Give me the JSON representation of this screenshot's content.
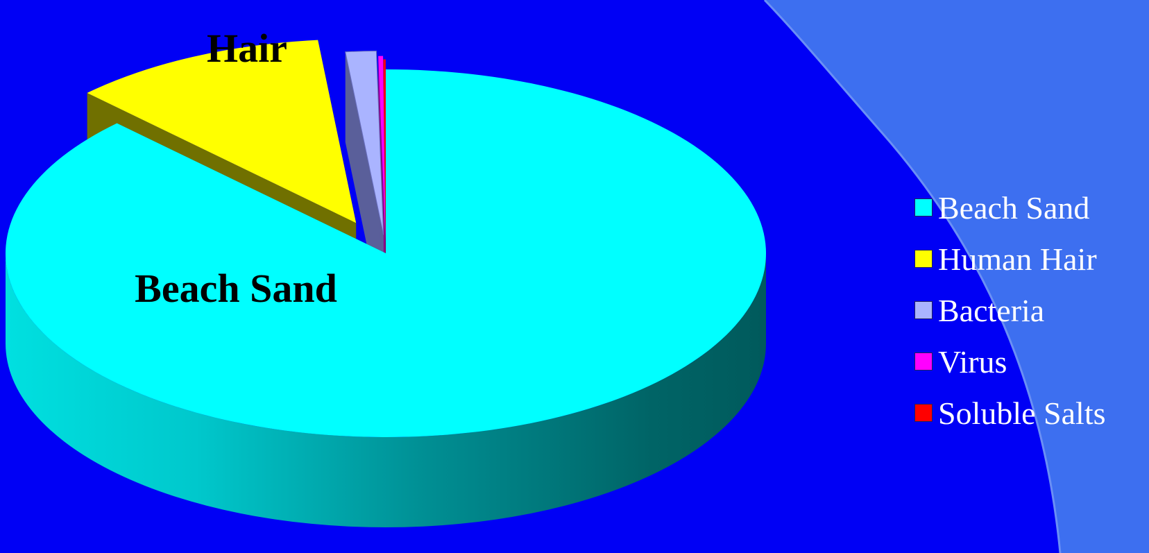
{
  "colors": {
    "background": "#0000f5",
    "ribbon": "#3d6ff0",
    "label_text": "#000000",
    "legend_text": "#ffffff"
  },
  "chart_data": {
    "type": "pie",
    "style": "3d-exploded",
    "legend_position": "right",
    "categories": [
      "Beach Sand",
      "Human Hair",
      "Bacteria",
      "Virus",
      "Soluble Salts"
    ],
    "values": [
      87.5,
      10.9,
      1.3,
      0.2,
      0.1
    ],
    "unit": "percent (estimated)",
    "series": [
      {
        "values": [
          87.5,
          10.9,
          1.3,
          0.2,
          0.1
        ],
        "colors": [
          "#00ffff",
          "#ffff00",
          "#aab4ff",
          "#ff00ff",
          "#ff0000"
        ]
      }
    ],
    "data_labels": [
      {
        "category": "Beach Sand",
        "text": "Beach Sand"
      },
      {
        "category": "Human Hair",
        "text": "Hair"
      }
    ],
    "legend": [
      "Beach Sand",
      "Human Hair",
      "Bacteria",
      "Virus",
      "Soluble Salts"
    ]
  }
}
